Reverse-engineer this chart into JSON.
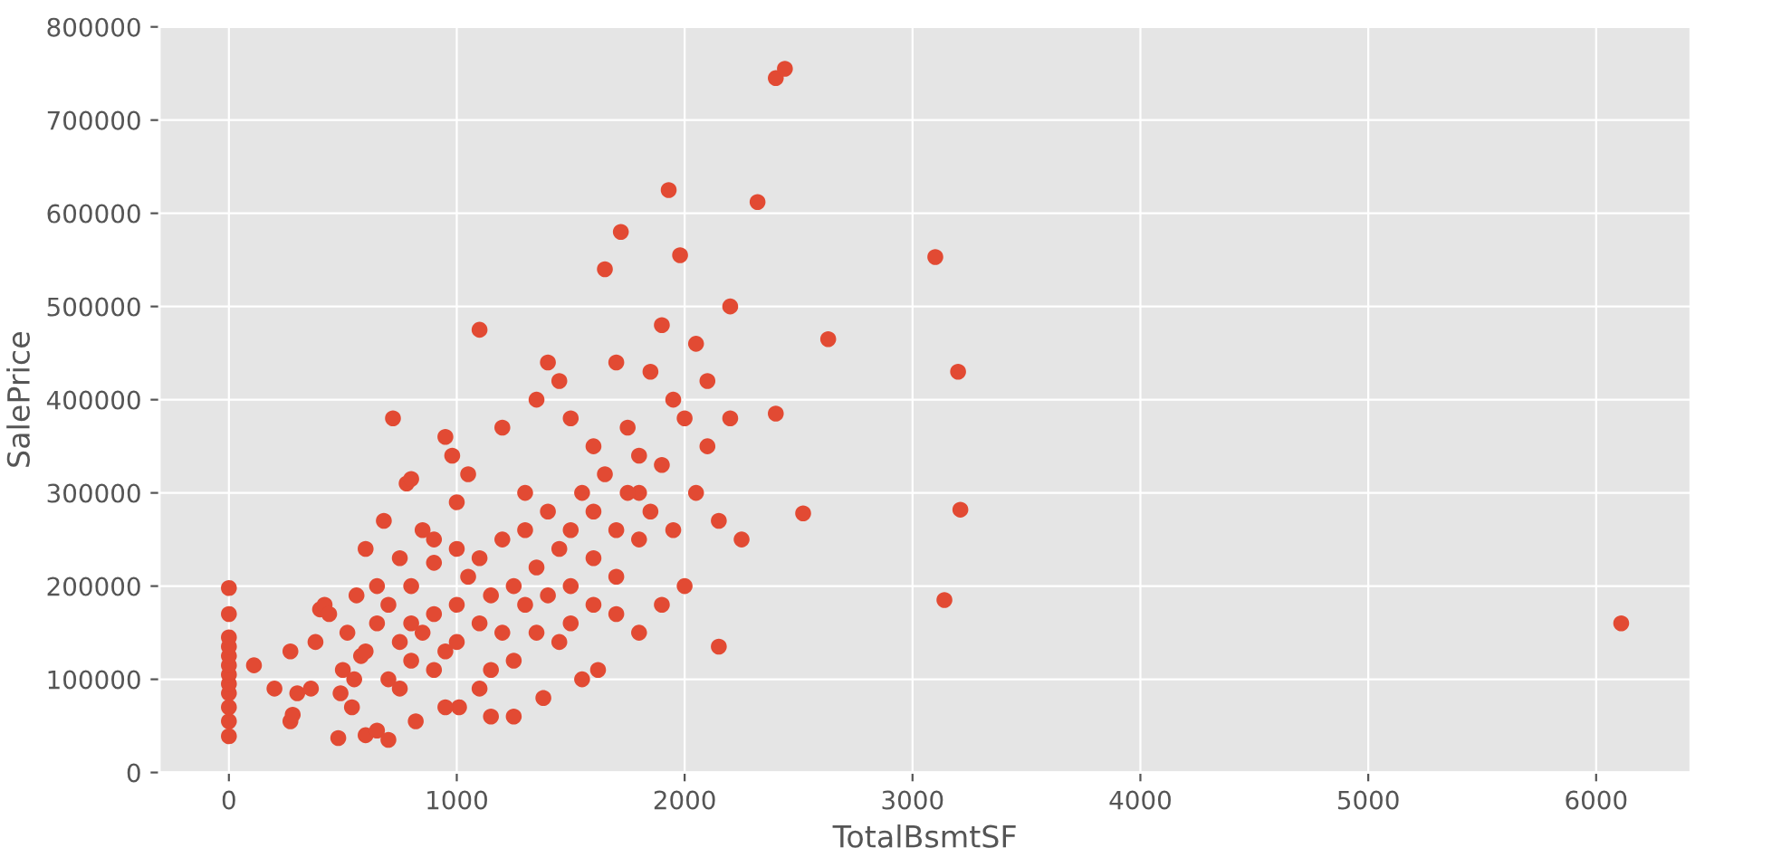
{
  "chart_data": {
    "type": "scatter",
    "xlabel": "TotalBsmtSF",
    "ylabel": "SalePrice",
    "xlim": [
      -305,
      6415
    ],
    "xticks": [
      0,
      1000,
      2000,
      3000,
      4000,
      5000,
      6000
    ],
    "ylim": [
      0,
      800000
    ],
    "yticks": [
      0,
      100000,
      200000,
      300000,
      400000,
      500000,
      600000,
      700000,
      800000
    ],
    "grid": true,
    "marker": "circle",
    "series": [
      {
        "color": "#e24a33",
        "x": [
          0,
          0,
          0,
          0,
          0,
          0,
          0,
          0,
          0,
          0,
          0,
          0,
          110,
          200,
          270,
          280,
          270,
          300,
          360,
          380,
          400,
          420,
          440,
          480,
          490,
          500,
          520,
          540,
          560,
          580,
          600,
          600,
          650,
          680,
          700,
          720,
          750,
          780,
          800,
          820,
          850,
          900,
          950,
          980,
          1000,
          1010,
          1050,
          1100,
          1100,
          1150,
          1200,
          1250,
          1300,
          1350,
          1380,
          1400,
          1450,
          1500,
          1550,
          1600,
          1620,
          1650,
          1700,
          1720,
          1750,
          1800,
          1850,
          1900,
          1930,
          1950,
          1980,
          2000,
          2050,
          2100,
          2150,
          2200,
          2250,
          2320,
          2400,
          2440,
          2400,
          2520,
          2630,
          3100,
          3140,
          3200,
          3210,
          6110,
          600,
          650,
          700,
          700,
          750,
          800,
          800,
          850,
          900,
          900,
          950,
          1000,
          1000,
          1050,
          1100,
          1100,
          1150,
          1200,
          1200,
          1250,
          1300,
          1300,
          1350,
          1400,
          1400,
          1450,
          1500,
          1500,
          1550,
          1600,
          1600,
          1650,
          1700,
          1700,
          1750,
          1800,
          1800,
          1850,
          1900,
          1950,
          2000,
          2050,
          2100,
          2150,
          2200,
          900,
          1000,
          800,
          650,
          550,
          1250,
          1150,
          1450,
          1600,
          1900,
          1350,
          750,
          950,
          1800,
          1700,
          1500
        ],
        "values": [
          39000,
          55000,
          70000,
          85000,
          95000,
          105000,
          115000,
          125000,
          135000,
          145000,
          170000,
          198000,
          115000,
          90000,
          55000,
          62000,
          130000,
          85000,
          90000,
          140000,
          175000,
          180000,
          170000,
          37000,
          85000,
          110000,
          150000,
          70000,
          190000,
          125000,
          240000,
          40000,
          45000,
          270000,
          35000,
          380000,
          230000,
          310000,
          315000,
          55000,
          260000,
          225000,
          360000,
          340000,
          290000,
          70000,
          320000,
          475000,
          90000,
          60000,
          370000,
          60000,
          300000,
          400000,
          80000,
          440000,
          420000,
          380000,
          100000,
          350000,
          110000,
          540000,
          440000,
          580000,
          370000,
          300000,
          430000,
          480000,
          625000,
          400000,
          555000,
          200000,
          460000,
          420000,
          135000,
          500000,
          250000,
          612000,
          745000,
          755000,
          385000,
          278000,
          465000,
          553000,
          185000,
          430000,
          282000,
          160000,
          130000,
          160000,
          100000,
          180000,
          140000,
          120000,
          200000,
          150000,
          170000,
          110000,
          130000,
          180000,
          140000,
          210000,
          160000,
          230000,
          190000,
          150000,
          250000,
          200000,
          180000,
          260000,
          220000,
          190000,
          280000,
          240000,
          260000,
          200000,
          300000,
          230000,
          280000,
          320000,
          260000,
          210000,
          300000,
          250000,
          340000,
          280000,
          330000,
          260000,
          380000,
          300000,
          350000,
          270000,
          380000,
          250000,
          240000,
          160000,
          200000,
          100000,
          120000,
          110000,
          140000,
          180000,
          180000,
          150000,
          90000,
          70000,
          150000,
          170000,
          160000
        ]
      }
    ]
  }
}
